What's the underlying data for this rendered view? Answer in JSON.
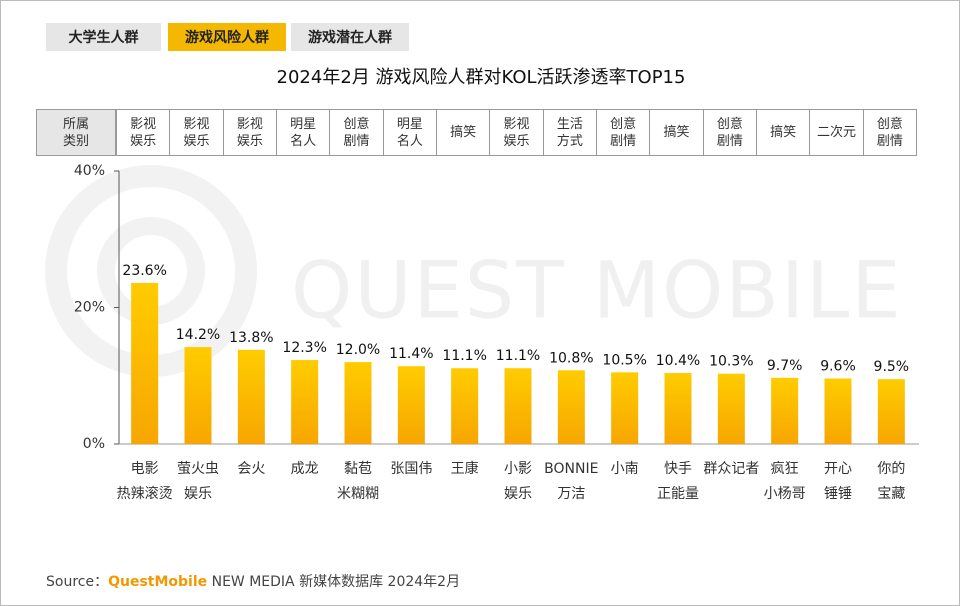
{
  "tabs": [
    "大学生人群",
    "游戏风险人群",
    "游戏潜在人群"
  ],
  "active_tab": 1,
  "watermark": "QUEST MOBILE",
  "genre_header": "所属\n类别",
  "genres": [
    "影视\n娱乐",
    "影视\n娱乐",
    "影视\n娱乐",
    "明星\n名人",
    "创意\n剧情",
    "明星\n名人",
    "搞笑",
    "影视\n娱乐",
    "生活\n方式",
    "创意\n剧情",
    "搞笑",
    "创意\n剧情",
    "搞笑",
    "二次元",
    "创意\n剧情"
  ],
  "chart_data": {
    "type": "bar",
    "title": "2024年2月 游戏风险人群对KOL活跃渗透率TOP15",
    "categories": [
      "电影\n热辣滚烫",
      "萤火虫\n娱乐",
      "会火",
      "成龙",
      "黏苞\n米糊糊",
      "张国伟",
      "王康",
      "小影\n娱乐",
      "BONNIE\n万洁",
      "小南",
      "快手\n正能量",
      "群众记者",
      "疯狂\n小杨哥",
      "开心\n锤锤",
      "你的\n宝藏"
    ],
    "values": [
      23.6,
      14.2,
      13.8,
      12.3,
      12.0,
      11.4,
      11.1,
      11.1,
      10.8,
      10.5,
      10.4,
      10.3,
      9.7,
      9.6,
      9.5
    ],
    "value_labels": [
      "23.6%",
      "14.2%",
      "13.8%",
      "12.3%",
      "12.0%",
      "11.4%",
      "11.1%",
      "11.1%",
      "10.8%",
      "10.5%",
      "10.4%",
      "10.3%",
      "9.7%",
      "9.6%",
      "9.5%"
    ],
    "color": "#ffc000",
    "ylim": [
      0,
      40
    ],
    "yticks": [
      {
        "value": 0,
        "label": "0%"
      },
      {
        "value": 20,
        "label": "20%"
      },
      {
        "value": 40,
        "label": "40%"
      }
    ]
  },
  "source": {
    "prefix": "Source：",
    "brand": "QuestMobile",
    "text": "NEW MEDIA 新媒体数据库 2024年2月"
  }
}
